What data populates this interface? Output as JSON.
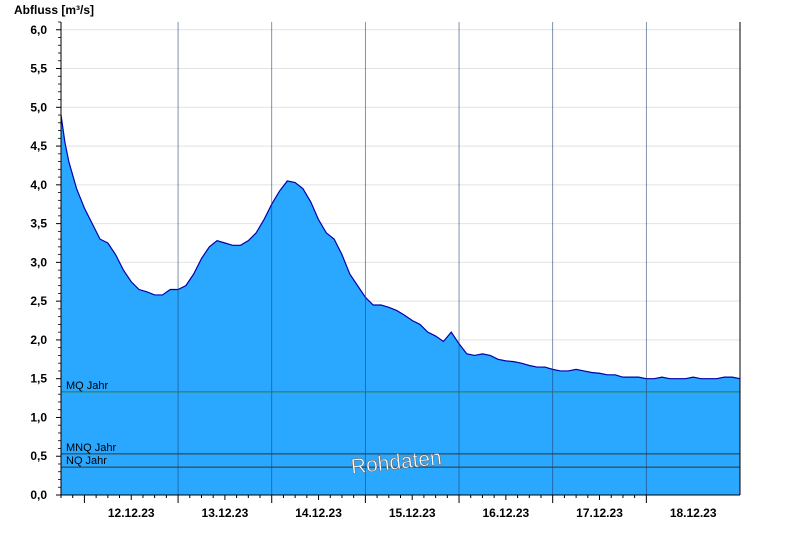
{
  "chart_data": {
    "type": "area",
    "ylabel": "Abfluss [m³/s]",
    "ylim": [
      0,
      6.1
    ],
    "y_ticks": [
      "0,0",
      "0,5",
      "1,0",
      "1,5",
      "2,0",
      "2,5",
      "3,0",
      "3,5",
      "4,0",
      "4,5",
      "5,0",
      "5,5",
      "6,0"
    ],
    "y_tick_values": [
      0,
      0.5,
      1.0,
      1.5,
      2.0,
      2.5,
      3.0,
      3.5,
      4.0,
      4.5,
      5.0,
      5.5,
      6.0
    ],
    "xlim": [
      "11.12.23 18:00",
      "18.12.23 24:00"
    ],
    "x_ticks": [
      "12.12.23",
      "13.12.23",
      "14.12.23",
      "15.12.23",
      "16.12.23",
      "17.12.23",
      "18.12.23"
    ],
    "grid": true,
    "area_color": "#2aa7ff",
    "line_color": "#0000aa",
    "series": [
      {
        "x": [
          "11.12.23 18:00",
          "11.12.23 19:00",
          "11.12.23 20:00",
          "11.12.23 22:00",
          "12.12.23 00:00",
          "12.12.23 02:00",
          "12.12.23 04:00",
          "12.12.23 06:00",
          "12.12.23 08:00",
          "12.12.23 10:00",
          "12.12.23 12:00",
          "12.12.23 14:00",
          "12.12.23 16:00",
          "12.12.23 18:00",
          "12.12.23 20:00",
          "12.12.23 22:00",
          "13.12.23 00:00",
          "13.12.23 02:00",
          "13.12.23 04:00",
          "13.12.23 06:00",
          "13.12.23 08:00",
          "13.12.23 10:00",
          "13.12.23 12:00",
          "13.12.23 14:00",
          "13.12.23 16:00",
          "13.12.23 18:00",
          "13.12.23 20:00",
          "13.12.23 22:00",
          "14.12.23 00:00",
          "14.12.23 02:00",
          "14.12.23 04:00",
          "14.12.23 06:00",
          "14.12.23 08:00",
          "14.12.23 10:00",
          "14.12.23 12:00",
          "14.12.23 14:00",
          "14.12.23 16:00",
          "14.12.23 18:00",
          "14.12.23 20:00",
          "14.12.23 22:00",
          "15.12.23 00:00",
          "15.12.23 02:00",
          "15.12.23 04:00",
          "15.12.23 06:00",
          "15.12.23 08:00",
          "15.12.23 10:00",
          "15.12.23 12:00",
          "15.12.23 14:00",
          "15.12.23 16:00",
          "15.12.23 18:00",
          "15.12.23 20:00",
          "15.12.23 22:00",
          "16.12.23 00:00",
          "16.12.23 02:00",
          "16.12.23 04:00",
          "16.12.23 06:00",
          "16.12.23 08:00",
          "16.12.23 10:00",
          "16.12.23 12:00",
          "16.12.23 14:00",
          "16.12.23 16:00",
          "16.12.23 18:00",
          "16.12.23 20:00",
          "16.12.23 22:00",
          "17.12.23 00:00",
          "17.12.23 02:00",
          "17.12.23 04:00",
          "17.12.23 06:00",
          "17.12.23 08:00",
          "17.12.23 10:00",
          "17.12.23 12:00",
          "17.12.23 14:00",
          "17.12.23 16:00",
          "17.12.23 18:00",
          "17.12.23 20:00",
          "17.12.23 22:00",
          "18.12.23 00:00",
          "18.12.23 02:00",
          "18.12.23 04:00",
          "18.12.23 06:00",
          "18.12.23 08:00",
          "18.12.23 10:00",
          "18.12.23 12:00",
          "18.12.23 14:00",
          "18.12.23 16:00",
          "18.12.23 18:00",
          "18.12.23 20:00",
          "18.12.23 22:00",
          "18.12.23 24:00"
        ],
        "values": [
          4.9,
          4.55,
          4.3,
          3.95,
          3.7,
          3.5,
          3.3,
          3.25,
          3.1,
          2.9,
          2.75,
          2.65,
          2.62,
          2.58,
          2.58,
          2.65,
          2.65,
          2.7,
          2.85,
          3.05,
          3.2,
          3.28,
          3.25,
          3.22,
          3.22,
          3.28,
          3.38,
          3.55,
          3.75,
          3.92,
          4.05,
          4.03,
          3.95,
          3.78,
          3.55,
          3.38,
          3.3,
          3.1,
          2.85,
          2.7,
          2.55,
          2.45,
          2.45,
          2.42,
          2.38,
          2.32,
          2.25,
          2.2,
          2.1,
          2.05,
          1.98,
          2.1,
          1.95,
          1.82,
          1.8,
          1.82,
          1.8,
          1.75,
          1.73,
          1.72,
          1.7,
          1.67,
          1.65,
          1.65,
          1.62,
          1.6,
          1.6,
          1.62,
          1.6,
          1.58,
          1.57,
          1.55,
          1.55,
          1.52,
          1.52,
          1.52,
          1.5,
          1.5,
          1.52,
          1.5,
          1.5,
          1.5,
          1.52,
          1.5,
          1.5,
          1.5,
          1.52,
          1.52,
          1.5
        ]
      }
    ],
    "reference_lines": [
      {
        "label": "MQ Jahr",
        "value": 1.33,
        "color": "#2e7d32"
      },
      {
        "label": "MNQ Jahr",
        "value": 0.53,
        "color": "#333333"
      },
      {
        "label": "NQ Jahr",
        "value": 0.36,
        "color": "#333333"
      }
    ],
    "watermark": "Rohdaten"
  }
}
